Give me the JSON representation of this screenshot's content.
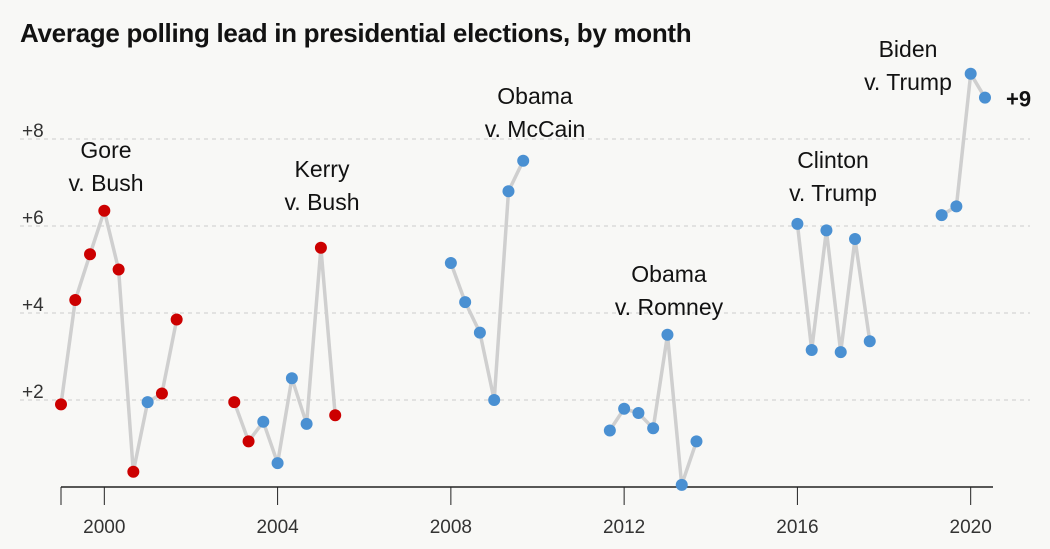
{
  "title": "Average polling lead in presidential elections, by month",
  "colors": {
    "republican": "#cc0000",
    "democrat": "#4a90d2",
    "line": "#cfcfcf",
    "grid": "#cccccc",
    "axis": "#333333"
  },
  "chart_data": {
    "type": "line",
    "title": "Average polling lead in presidential elections, by month",
    "xlabel": "",
    "ylabel": "",
    "xlim": [
      1999.0,
      2020.45
    ],
    "ylim": [
      0,
      10
    ],
    "grid": true,
    "y_ticks": [
      {
        "value": 2,
        "label": "+2"
      },
      {
        "value": 4,
        "label": "+4"
      },
      {
        "value": 6,
        "label": "+6"
      },
      {
        "value": 8,
        "label": "+8"
      }
    ],
    "x_ticks": [
      {
        "value": 2000,
        "label": "2000"
      },
      {
        "value": 2004,
        "label": "2004"
      },
      {
        "value": 2008,
        "label": "2008"
      },
      {
        "value": 2012,
        "label": "2012"
      },
      {
        "value": 2016,
        "label": "2016"
      },
      {
        "value": 2020,
        "label": "2020"
      }
    ],
    "series": [
      {
        "name": "Gore v. Bush",
        "label_lines": [
          "Gore",
          "v. Bush"
        ],
        "points": [
          {
            "x": 1999.0,
            "y": 1.9,
            "party": "R"
          },
          {
            "x": 1999.33,
            "y": 4.3,
            "party": "R"
          },
          {
            "x": 1999.67,
            "y": 5.35,
            "party": "R"
          },
          {
            "x": 2000.0,
            "y": 6.35,
            "party": "R"
          },
          {
            "x": 2000.33,
            "y": 5.0,
            "party": "R"
          },
          {
            "x": 2000.67,
            "y": 0.35,
            "party": "R"
          },
          {
            "x": 2001.0,
            "y": 1.95,
            "party": "D"
          },
          {
            "x": 2001.33,
            "y": 2.15,
            "party": "R"
          },
          {
            "x": 2001.67,
            "y": 3.85,
            "party": "R"
          }
        ]
      },
      {
        "name": "Kerry v. Bush",
        "label_lines": [
          "Kerry",
          "v. Bush"
        ],
        "points": [
          {
            "x": 2003.0,
            "y": 1.95,
            "party": "R"
          },
          {
            "x": 2003.33,
            "y": 1.05,
            "party": "R"
          },
          {
            "x": 2003.67,
            "y": 1.5,
            "party": "D"
          },
          {
            "x": 2004.0,
            "y": 0.55,
            "party": "D"
          },
          {
            "x": 2004.33,
            "y": 2.5,
            "party": "D"
          },
          {
            "x": 2004.67,
            "y": 1.45,
            "party": "D"
          },
          {
            "x": 2005.0,
            "y": 5.5,
            "party": "R"
          },
          {
            "x": 2005.33,
            "y": 1.65,
            "party": "R"
          }
        ]
      },
      {
        "name": "Obama v. McCain",
        "label_lines": [
          "Obama",
          "v. McCain"
        ],
        "points": [
          {
            "x": 2008.0,
            "y": 5.15,
            "party": "D"
          },
          {
            "x": 2008.33,
            "y": 4.25,
            "party": "D"
          },
          {
            "x": 2008.67,
            "y": 3.55,
            "party": "D"
          },
          {
            "x": 2009.0,
            "y": 2.0,
            "party": "D"
          },
          {
            "x": 2009.33,
            "y": 6.8,
            "party": "D"
          },
          {
            "x": 2009.67,
            "y": 7.5,
            "party": "D"
          }
        ]
      },
      {
        "name": "Obama v. Romney",
        "label_lines": [
          "Obama",
          "v. Romney"
        ],
        "points": [
          {
            "x": 2011.67,
            "y": 1.3,
            "party": "D"
          },
          {
            "x": 2012.0,
            "y": 1.8,
            "party": "D"
          },
          {
            "x": 2012.33,
            "y": 1.7,
            "party": "D"
          },
          {
            "x": 2012.67,
            "y": 1.35,
            "party": "D"
          },
          {
            "x": 2013.0,
            "y": 3.5,
            "party": "D"
          },
          {
            "x": 2013.33,
            "y": 0.05,
            "party": "D"
          },
          {
            "x": 2013.67,
            "y": 1.05,
            "party": "D"
          }
        ]
      },
      {
        "name": "Clinton v. Trump",
        "label_lines": [
          "Clinton",
          "v. Trump"
        ],
        "points": [
          {
            "x": 2016.0,
            "y": 6.05,
            "party": "D"
          },
          {
            "x": 2016.33,
            "y": 3.15,
            "party": "D"
          },
          {
            "x": 2016.67,
            "y": 5.9,
            "party": "D"
          },
          {
            "x": 2017.0,
            "y": 3.1,
            "party": "D"
          },
          {
            "x": 2017.33,
            "y": 5.7,
            "party": "D"
          },
          {
            "x": 2017.67,
            "y": 3.35,
            "party": "D"
          }
        ]
      },
      {
        "name": "Biden v. Trump",
        "label_lines": [
          "Biden",
          "v. Trump"
        ],
        "points": [
          {
            "x": 2019.33,
            "y": 6.25,
            "party": "D"
          },
          {
            "x": 2019.67,
            "y": 6.45,
            "party": "D"
          },
          {
            "x": 2020.0,
            "y": 9.5,
            "party": "D"
          },
          {
            "x": 2020.33,
            "y": 8.95,
            "party": "D"
          }
        ]
      }
    ],
    "end_label": "+9"
  }
}
